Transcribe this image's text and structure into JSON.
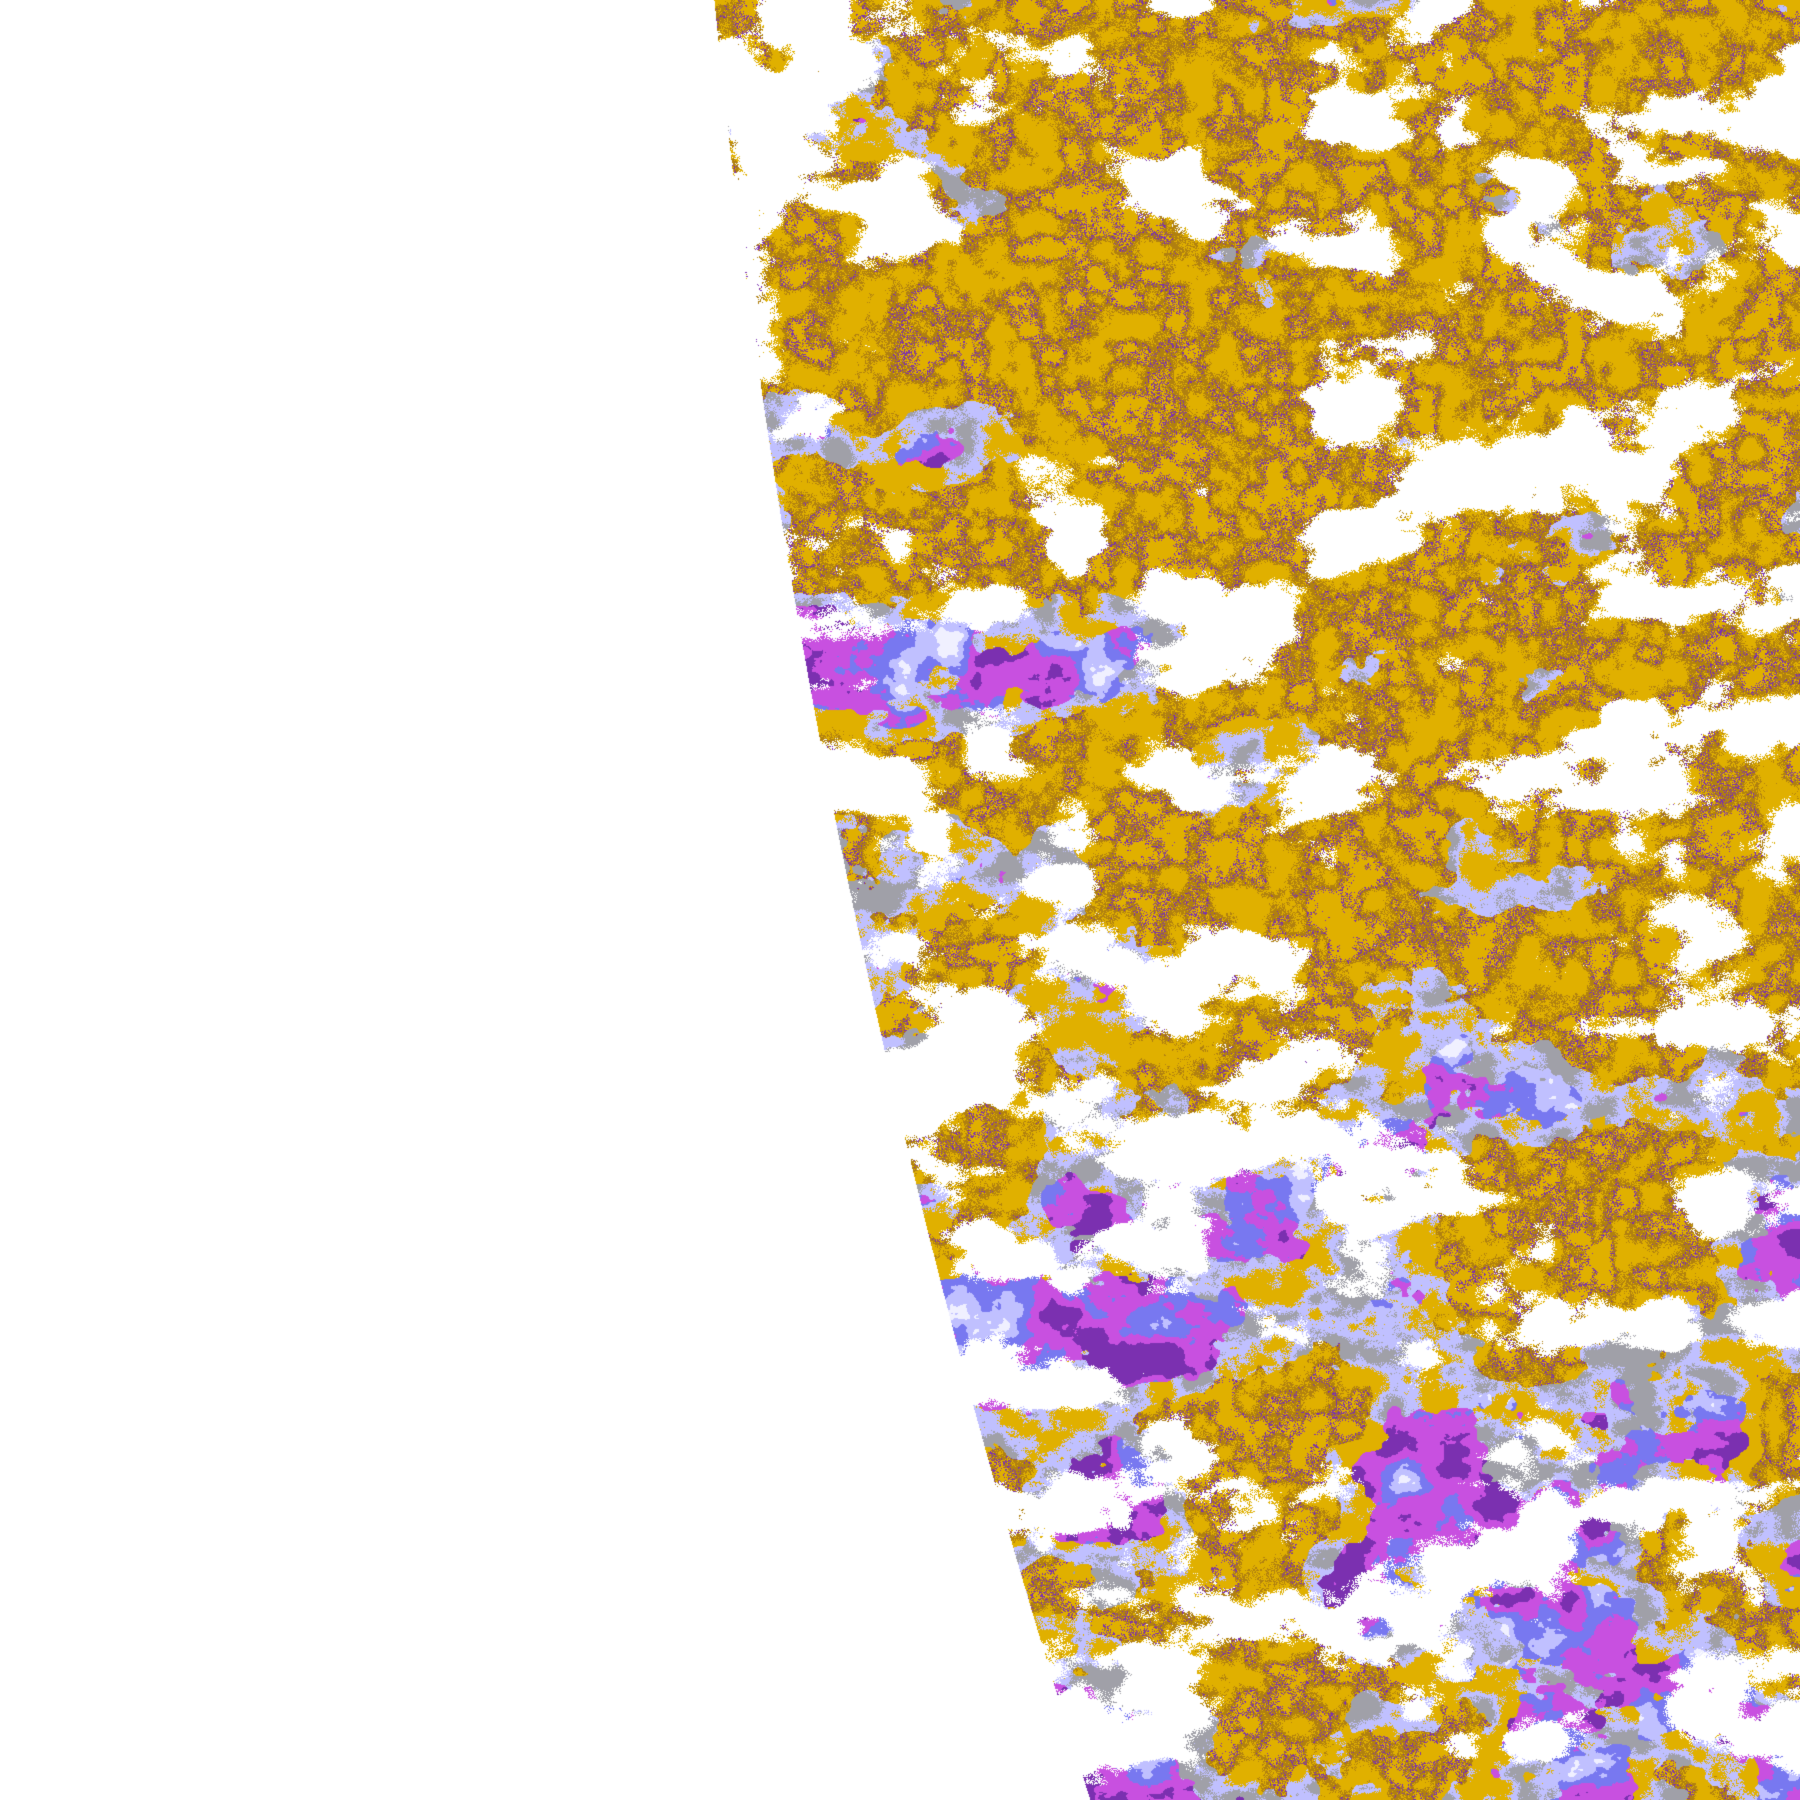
{
  "image": {
    "kind": "satellite cloud-classification false-color imagery",
    "background": "#ffffff",
    "palette": {
      "gold": "#e0b000",
      "dark_gold": "#b08010",
      "purple": "#7b30b0",
      "magenta": "#c850e0",
      "blue": "#7878f0",
      "lavender": "#c0c0ff",
      "pale_lavender": "#f0f0ff",
      "gray": "#a0a0a8",
      "clear": "#ffffff"
    }
  }
}
